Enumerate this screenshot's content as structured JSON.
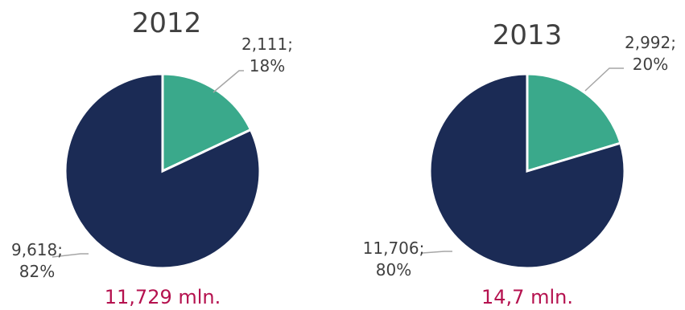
{
  "colors": {
    "dark_slice": "#1b2b55",
    "green_slice": "#3aa98b",
    "total_text": "#b5124f"
  },
  "chart_data": [
    {
      "type": "pie",
      "title": "2012",
      "slices": [
        {
          "value": 2111,
          "percent": 18,
          "label_line1": "2,111;",
          "label_line2": "18%",
          "color": "#3aa98b"
        },
        {
          "value": 9618,
          "percent": 82,
          "label_line1": "9,618;",
          "label_line2": "82%",
          "color": "#1b2b55"
        }
      ],
      "total_label": "11,729 mln."
    },
    {
      "type": "pie",
      "title": "2013",
      "slices": [
        {
          "value": 2992,
          "percent": 20,
          "label_line1": "2,992;",
          "label_line2": "20%",
          "color": "#3aa98b"
        },
        {
          "value": 11706,
          "percent": 80,
          "label_line1": "11,706;",
          "label_line2": "80%",
          "color": "#1b2b55"
        }
      ],
      "total_label": "14,7 mln."
    }
  ]
}
